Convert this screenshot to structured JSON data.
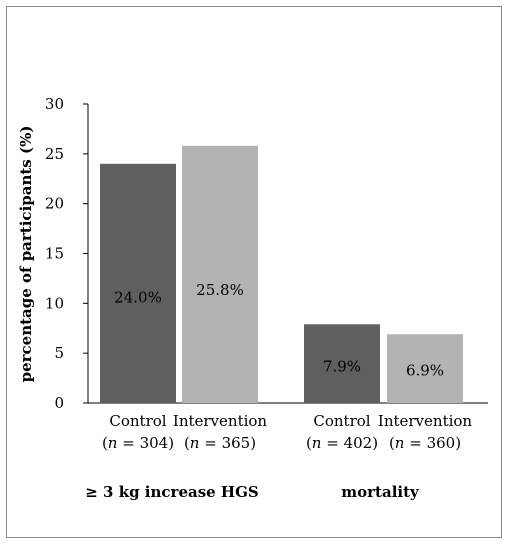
{
  "chart_data": {
    "type": "bar",
    "ylabel": "percentage of participants (%)",
    "ylim": [
      0,
      30
    ],
    "yticks": [
      0,
      5,
      10,
      15,
      20,
      25,
      30
    ],
    "grid": false,
    "colors": {
      "control": "#5f5f5f",
      "intervention": "#b3b3b3"
    },
    "groups": [
      {
        "label": "≥ 3 kg increase HGS",
        "bars": [
          {
            "series": "Control",
            "n_label": "n = 304",
            "value": 24.0,
            "value_label": "24.0%",
            "color_key": "control"
          },
          {
            "series": "Intervention",
            "n_label": "n = 365",
            "value": 25.8,
            "value_label": "25.8%",
            "color_key": "intervention"
          }
        ]
      },
      {
        "label": "mortality",
        "bars": [
          {
            "series": "Control",
            "n_label": "n = 402",
            "value": 7.9,
            "value_label": "7.9%",
            "color_key": "control"
          },
          {
            "series": "Intervention",
            "n_label": "n = 360",
            "value": 6.9,
            "value_label": "6.9%",
            "color_key": "intervention"
          }
        ]
      }
    ]
  }
}
